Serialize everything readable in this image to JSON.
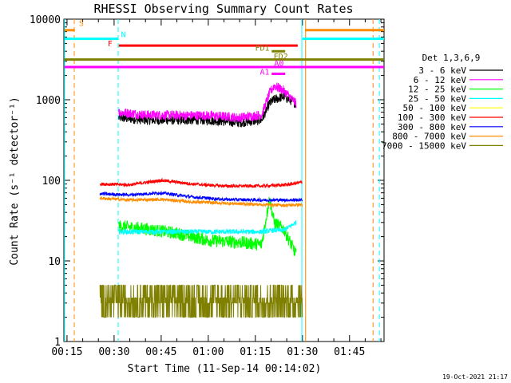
{
  "chart_data": {
    "type": "line",
    "title": "RHESSI Observing Summary Count Rates",
    "xlabel": "Start Time (11-Sep-14 00:14:02)",
    "ylabel": "Count Rate (s⁻¹ detector⁻¹)",
    "yscale": "log",
    "xlim": [
      14.0,
      54.5
    ],
    "ylim": [
      1,
      10000
    ],
    "x_unit": "minutes after 01:00? no",
    "x_ticks": [
      "00:15",
      "00:30",
      "00:45",
      "01:00",
      "01:15",
      "01:30",
      "01:45"
    ],
    "y_ticks": [
      "1",
      "10",
      "100",
      "1000",
      "10000"
    ],
    "legend_title": "Det 1,3,6,9",
    "legend_position": "right",
    "timestamp": "19-Oct-2021 21:17",
    "series": [
      {
        "name": "3 - 6 keV",
        "color": "#000000",
        "base": [
          [
            31.5,
            600
          ],
          [
            40,
            560
          ],
          [
            50,
            560
          ],
          [
            60,
            560
          ],
          [
            70,
            520
          ],
          [
            77,
            560
          ],
          [
            79.5,
            900
          ],
          [
            81,
            1000
          ],
          [
            84,
            1100
          ],
          [
            88,
            900
          ]
        ]
      },
      {
        "name": "6 - 12 keV",
        "color": "#ff00ff",
        "base": [
          [
            31.5,
            700
          ],
          [
            40,
            650
          ],
          [
            50,
            640
          ],
          [
            60,
            640
          ],
          [
            70,
            600
          ],
          [
            77,
            650
          ],
          [
            79.5,
            1200
          ],
          [
            81,
            1500
          ],
          [
            84,
            1300
          ],
          [
            88,
            900
          ]
        ]
      },
      {
        "name": "12 - 25 keV",
        "color": "#00ff00",
        "base": [
          [
            31.5,
            27
          ],
          [
            40,
            25
          ],
          [
            50,
            22
          ],
          [
            60,
            18
          ],
          [
            70,
            17
          ],
          [
            77,
            16
          ],
          [
            79.5,
            60
          ],
          [
            81,
            30
          ],
          [
            84,
            25
          ],
          [
            88,
            12
          ]
        ]
      },
      {
        "name": "25 - 50 keV",
        "color": "#00ffff",
        "base": [
          [
            31.5,
            23
          ],
          [
            40,
            23
          ],
          [
            50,
            23
          ],
          [
            60,
            23
          ],
          [
            70,
            23
          ],
          [
            77,
            23
          ],
          [
            81,
            24
          ],
          [
            84,
            24
          ],
          [
            88,
            30
          ]
        ]
      },
      {
        "name": "50 - 100 keV",
        "color": "#ffff00",
        "base": []
      },
      {
        "name": "100 - 300 keV",
        "color": "#ff0000",
        "base": [
          [
            25.5,
            90
          ],
          [
            35,
            88
          ],
          [
            45,
            100
          ],
          [
            55,
            90
          ],
          [
            65,
            85
          ],
          [
            77,
            85
          ],
          [
            85,
            88
          ],
          [
            90,
            95
          ]
        ]
      },
      {
        "name": "300 - 800 keV",
        "color": "#0000ff",
        "base": [
          [
            25.5,
            68
          ],
          [
            35,
            66
          ],
          [
            45,
            70
          ],
          [
            55,
            62
          ],
          [
            65,
            58
          ],
          [
            77,
            57
          ],
          [
            85,
            57
          ],
          [
            90,
            57
          ]
        ]
      },
      {
        "name": "800 - 7000 keV",
        "color": "#ff8c00",
        "base": [
          [
            25.5,
            60
          ],
          [
            35,
            57
          ],
          [
            45,
            58
          ],
          [
            55,
            54
          ],
          [
            65,
            52
          ],
          [
            77,
            50
          ],
          [
            85,
            49
          ],
          [
            90,
            50
          ]
        ]
      },
      {
        "name": "7000 - 15000 keV",
        "color": "#808000",
        "base": [
          [
            25.5,
            3
          ],
          [
            35,
            3.5
          ],
          [
            45,
            3.3
          ],
          [
            55,
            3
          ],
          [
            65,
            3
          ],
          [
            77,
            3
          ],
          [
            85,
            3.2
          ],
          [
            90,
            3
          ]
        ]
      }
    ],
    "annotations": [
      {
        "text": "S",
        "color": "#ff8c00"
      },
      {
        "text": "N",
        "color": "#00ffff"
      },
      {
        "text": "F",
        "color": "#ff0000"
      },
      {
        "text": "FD1",
        "color": "#808000"
      },
      {
        "text": "FD2",
        "color": "#808000"
      },
      {
        "text": "A0",
        "color": "#ff00ff"
      },
      {
        "text": "A1",
        "color": "#ff00ff"
      }
    ]
  }
}
